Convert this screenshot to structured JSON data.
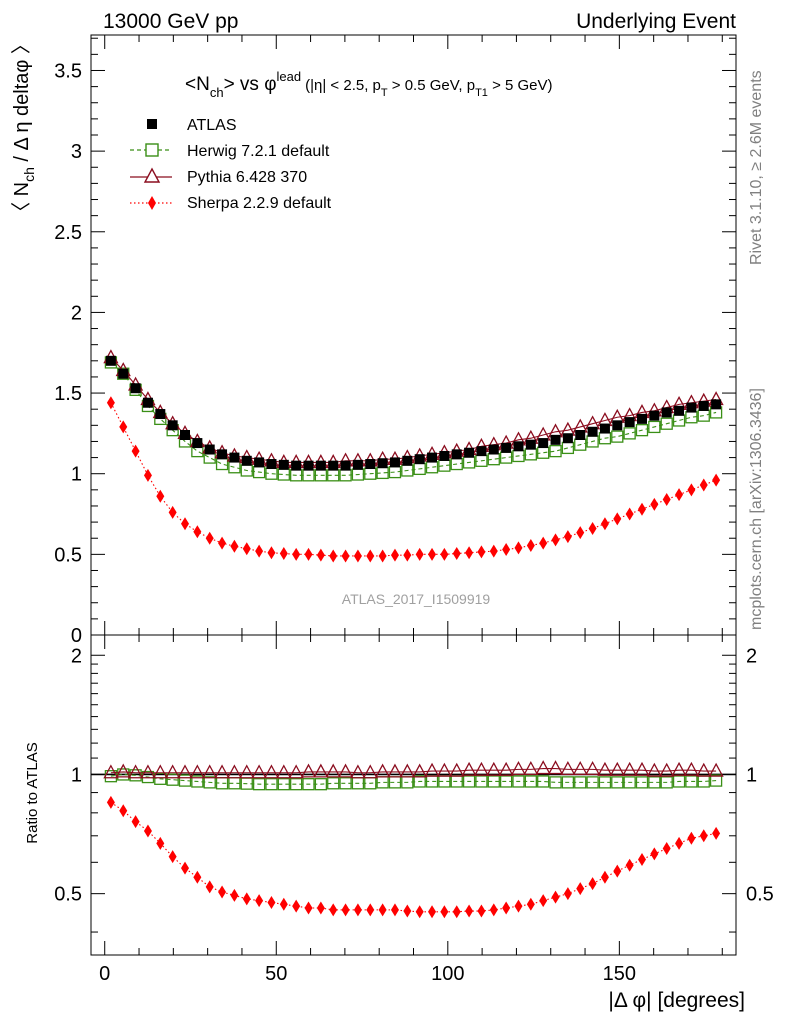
{
  "header": {
    "left": "13000 GeV pp",
    "right": "Underlying Event"
  },
  "title": {
    "main": "<N",
    "main_sub": "ch",
    "main_end": "> vs ",
    "phi": "φ",
    "phi_sup": "lead",
    "cuts_a": "(|η| < 2.5, p",
    "cuts_a_sub": "T",
    "cuts_b": " > 0.5 GeV, p",
    "cuts_b_sub": "T1",
    "cuts_c": " > 5 GeV)"
  },
  "side_labels": {
    "rivet": "Rivet 3.1.10, ≥ 2.6M events",
    "mcplots": "mcplots.cern.ch [arXiv:1306.3436]"
  },
  "analysis_id": "ATLAS_2017_I1509919",
  "colors": {
    "atlas": "#000000",
    "herwig": "#3a8f16",
    "pythia": "#8b0d1f",
    "sherpa": "#ff0000"
  },
  "chart_data": [
    {
      "type": "scatter",
      "panel": "main",
      "ylabel_parts": [
        "〈 N",
        "ch",
        " / Δ η deltaφ 〉"
      ],
      "xlim": [
        -4,
        184
      ],
      "ylim": [
        0,
        3.72
      ],
      "yticks": [
        0,
        0.5,
        1,
        1.5,
        2,
        2.5,
        3,
        3.5
      ],
      "ytick_labels": [
        "0",
        "0.5",
        "1",
        "1.5",
        "2",
        "2.5",
        "3",
        "3.5"
      ],
      "legend_position": "top-left",
      "x": [
        1.8,
        5.4,
        9.0,
        12.6,
        16.2,
        19.8,
        23.4,
        27.0,
        30.6,
        34.2,
        37.8,
        41.4,
        45.0,
        48.6,
        52.2,
        55.8,
        59.4,
        63.0,
        66.6,
        70.2,
        73.8,
        77.4,
        81.0,
        84.6,
        88.2,
        91.8,
        95.4,
        99.0,
        102.6,
        106.2,
        109.8,
        113.4,
        117.0,
        120.6,
        124.2,
        127.8,
        131.4,
        135.0,
        138.6,
        142.2,
        145.8,
        149.4,
        153.0,
        156.6,
        160.2,
        163.8,
        167.4,
        171.0,
        174.6,
        178.2
      ],
      "series": [
        {
          "name": "ATLAS",
          "style": "filled-square",
          "values": [
            1.7,
            1.62,
            1.53,
            1.44,
            1.37,
            1.3,
            1.24,
            1.19,
            1.15,
            1.12,
            1.1,
            1.08,
            1.07,
            1.06,
            1.055,
            1.05,
            1.05,
            1.05,
            1.05,
            1.05,
            1.055,
            1.06,
            1.065,
            1.07,
            1.08,
            1.09,
            1.1,
            1.11,
            1.12,
            1.13,
            1.14,
            1.15,
            1.16,
            1.17,
            1.18,
            1.19,
            1.21,
            1.22,
            1.24,
            1.26,
            1.28,
            1.3,
            1.32,
            1.34,
            1.36,
            1.38,
            1.39,
            1.41,
            1.42,
            1.43
          ]
        },
        {
          "name": "Herwig 7.2.1 default",
          "style": "open-square-dashed",
          "values": [
            1.69,
            1.62,
            1.52,
            1.42,
            1.34,
            1.27,
            1.2,
            1.14,
            1.1,
            1.06,
            1.04,
            1.02,
            1.01,
            1.0,
            0.995,
            0.99,
            0.99,
            0.99,
            0.99,
            0.99,
            0.995,
            1.0,
            1.005,
            1.01,
            1.02,
            1.03,
            1.04,
            1.05,
            1.06,
            1.07,
            1.08,
            1.09,
            1.1,
            1.11,
            1.12,
            1.13,
            1.14,
            1.16,
            1.18,
            1.2,
            1.22,
            1.23,
            1.25,
            1.27,
            1.29,
            1.31,
            1.33,
            1.35,
            1.36,
            1.38
          ]
        },
        {
          "name": "Pythia 6.428 370",
          "style": "open-triangle-solid",
          "values": [
            1.72,
            1.64,
            1.55,
            1.46,
            1.38,
            1.31,
            1.25,
            1.2,
            1.16,
            1.13,
            1.11,
            1.1,
            1.09,
            1.08,
            1.07,
            1.07,
            1.07,
            1.07,
            1.07,
            1.08,
            1.08,
            1.08,
            1.09,
            1.09,
            1.1,
            1.11,
            1.12,
            1.13,
            1.14,
            1.15,
            1.17,
            1.18,
            1.19,
            1.21,
            1.22,
            1.24,
            1.26,
            1.27,
            1.29,
            1.31,
            1.33,
            1.35,
            1.36,
            1.38,
            1.39,
            1.41,
            1.43,
            1.44,
            1.45,
            1.46
          ]
        },
        {
          "name": "Sherpa 2.2.9 default",
          "style": "filled-diamond-dotted",
          "values": [
            1.44,
            1.29,
            1.14,
            0.99,
            0.86,
            0.76,
            0.69,
            0.64,
            0.6,
            0.57,
            0.55,
            0.535,
            0.52,
            0.51,
            0.505,
            0.5,
            0.5,
            0.495,
            0.49,
            0.49,
            0.49,
            0.49,
            0.49,
            0.495,
            0.495,
            0.5,
            0.5,
            0.5,
            0.505,
            0.51,
            0.515,
            0.52,
            0.53,
            0.54,
            0.555,
            0.57,
            0.59,
            0.61,
            0.635,
            0.66,
            0.69,
            0.72,
            0.75,
            0.78,
            0.81,
            0.84,
            0.87,
            0.9,
            0.93,
            0.96
          ]
        }
      ]
    },
    {
      "type": "scatter",
      "panel": "ratio",
      "ylabel": "Ratio to ATLAS",
      "xlabel": "|Δ φ| [degrees]",
      "xlim": [
        -4,
        184
      ],
      "ylim": [
        0.35,
        2.25
      ],
      "xticks": [
        0,
        50,
        100,
        150
      ],
      "xtick_labels": [
        "0",
        "50",
        "100",
        "150"
      ],
      "yticks": [
        0.5,
        1,
        2
      ],
      "ytick_labels": [
        "0.5",
        "1",
        "2"
      ],
      "reference": 1,
      "x": [
        1.8,
        5.4,
        9.0,
        12.6,
        16.2,
        19.8,
        23.4,
        27.0,
        30.6,
        34.2,
        37.8,
        41.4,
        45.0,
        48.6,
        52.2,
        55.8,
        59.4,
        63.0,
        66.6,
        70.2,
        73.8,
        77.4,
        81.0,
        84.6,
        88.2,
        91.8,
        95.4,
        99.0,
        102.6,
        106.2,
        109.8,
        113.4,
        117.0,
        120.6,
        124.2,
        127.8,
        131.4,
        135.0,
        138.6,
        142.2,
        145.8,
        149.4,
        153.0,
        156.6,
        160.2,
        163.8,
        167.4,
        171.0,
        174.6,
        178.2
      ],
      "series": [
        {
          "name": "Herwig 7.2.1 default",
          "values": [
            0.99,
            1.0,
            0.995,
            0.985,
            0.975,
            0.97,
            0.965,
            0.96,
            0.955,
            0.95,
            0.95,
            0.948,
            0.945,
            0.945,
            0.945,
            0.945,
            0.945,
            0.945,
            0.95,
            0.95,
            0.95,
            0.95,
            0.955,
            0.955,
            0.955,
            0.96,
            0.96,
            0.96,
            0.96,
            0.96,
            0.96,
            0.96,
            0.96,
            0.96,
            0.96,
            0.96,
            0.955,
            0.955,
            0.955,
            0.955,
            0.955,
            0.955,
            0.955,
            0.955,
            0.955,
            0.955,
            0.96,
            0.96,
            0.96,
            0.965
          ]
        },
        {
          "name": "Pythia 6.428 370",
          "values": [
            1.01,
            1.015,
            1.01,
            1.01,
            1.01,
            1.01,
            1.01,
            1.01,
            1.01,
            1.01,
            1.01,
            1.01,
            1.01,
            1.01,
            1.01,
            1.01,
            1.015,
            1.015,
            1.015,
            1.015,
            1.01,
            1.01,
            1.015,
            1.015,
            1.015,
            1.015,
            1.02,
            1.02,
            1.02,
            1.025,
            1.025,
            1.025,
            1.025,
            1.03,
            1.03,
            1.035,
            1.035,
            1.03,
            1.03,
            1.03,
            1.025,
            1.025,
            1.025,
            1.025,
            1.02,
            1.02,
            1.025,
            1.025,
            1.02,
            1.02
          ]
        },
        {
          "name": "Sherpa 2.2.9 default",
          "values": [
            0.85,
            0.81,
            0.76,
            0.72,
            0.67,
            0.62,
            0.58,
            0.55,
            0.52,
            0.505,
            0.495,
            0.485,
            0.48,
            0.475,
            0.47,
            0.465,
            0.46,
            0.46,
            0.455,
            0.455,
            0.455,
            0.455,
            0.455,
            0.455,
            0.452,
            0.45,
            0.45,
            0.45,
            0.45,
            0.452,
            0.452,
            0.455,
            0.46,
            0.465,
            0.47,
            0.48,
            0.49,
            0.5,
            0.515,
            0.53,
            0.55,
            0.57,
            0.59,
            0.61,
            0.63,
            0.65,
            0.67,
            0.69,
            0.7,
            0.71
          ]
        }
      ]
    }
  ]
}
